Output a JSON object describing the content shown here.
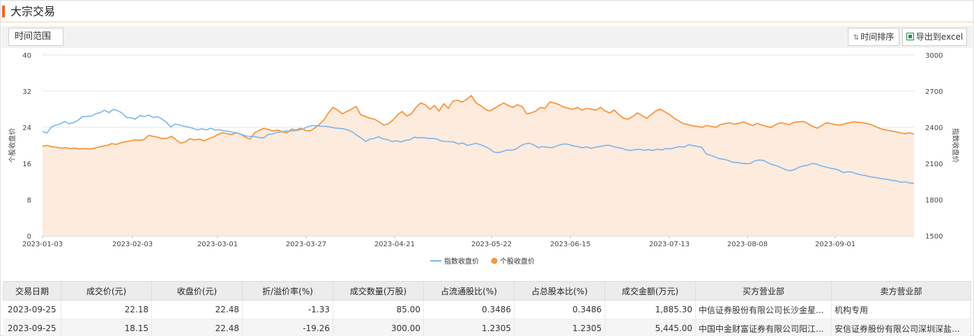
{
  "page": {
    "title": "大宗交易"
  },
  "toolbar": {
    "range_label": "时间范围",
    "sort_label": "时间排序",
    "sort_icon": "sort-icon",
    "export_label": "导出到excel",
    "export_icon": "excel-icon"
  },
  "chart_data": {
    "type": "line",
    "left_axis": {
      "label": "个股收盘价",
      "ticks": [
        "0",
        "8",
        "16",
        "24",
        "32",
        "40"
      ],
      "ylim": [
        0,
        40
      ]
    },
    "right_axis": {
      "label": "指数收盘价",
      "ticks": [
        "1500",
        "1800",
        "2100",
        "2400",
        "2700",
        "3000"
      ],
      "ylim": [
        1500,
        3000
      ]
    },
    "x_ticks": [
      "2023-01-03",
      "2023-02-03",
      "2023-03-01",
      "2023-03-27",
      "2023-04-21",
      "2023-05-22",
      "2023-06-15",
      "2023-07-13",
      "2023-08-08",
      "2023-09-01"
    ],
    "grid": true,
    "legend_position": "bottom",
    "colors": {
      "index": "#7cb5ec",
      "stock": "#f7963c",
      "stock_fill": "#fdebde"
    },
    "series": [
      {
        "name": "指数收盘价",
        "axis": "right",
        "values": [
          2365,
          2352,
          2402,
          2418,
          2428,
          2448,
          2430,
          2438,
          2458,
          2488,
          2490,
          2492,
          2512,
          2522,
          2542,
          2522,
          2548,
          2538,
          2518,
          2482,
          2478,
          2468,
          2498,
          2488,
          2502,
          2482,
          2488,
          2468,
          2442,
          2402,
          2428,
          2418,
          2408,
          2402,
          2392,
          2378,
          2388,
          2378,
          2392,
          2378,
          2380,
          2370,
          2368,
          2358,
          2352,
          2340,
          2328,
          2325,
          2322,
          2315,
          2312,
          2340,
          2345,
          2358,
          2362,
          2370,
          2368,
          2372,
          2378,
          2388,
          2405,
          2415,
          2412,
          2408,
          2408,
          2402,
          2395,
          2392,
          2388,
          2378,
          2362,
          2335,
          2312,
          2282,
          2302,
          2308,
          2322,
          2302,
          2298,
          2282,
          2288,
          2278,
          2292,
          2295,
          2318,
          2312,
          2315,
          2308,
          2308,
          2305,
          2288,
          2282,
          2282,
          2278,
          2262,
          2270,
          2250,
          2258,
          2268,
          2255,
          2242,
          2222,
          2195,
          2190,
          2200,
          2212,
          2210,
          2218,
          2245,
          2262,
          2268,
          2255,
          2232,
          2240,
          2235,
          2230,
          2242,
          2255,
          2262,
          2258,
          2245,
          2240,
          2230,
          2238,
          2225,
          2235,
          2240,
          2248,
          2252,
          2240,
          2232,
          2225,
          2212,
          2208,
          2215,
          2218,
          2210,
          2215,
          2208,
          2218,
          2212,
          2225,
          2220,
          2232,
          2240,
          2235,
          2255,
          2248,
          2242,
          2235,
          2180,
          2168,
          2155,
          2140,
          2135,
          2125,
          2110,
          2108,
          2102,
          2098,
          2100,
          2122,
          2128,
          2125,
          2105,
          2090,
          2080,
          2065,
          2048,
          2040,
          2050,
          2070,
          2080,
          2085,
          2100,
          2095,
          2080,
          2072,
          2062,
          2055,
          2045,
          2025,
          2032,
          2028,
          2015,
          2005,
          2000,
          1990,
          1985,
          1978,
          1972,
          1968,
          1960,
          1955,
          1945,
          1948,
          1938,
          1935
        ]
      },
      {
        "name": "个股收盘价",
        "axis": "left",
        "values": [
          19.8,
          20.0,
          19.7,
          19.6,
          19.4,
          19.5,
          19.3,
          19.4,
          19.2,
          19.3,
          19.2,
          19.3,
          19.6,
          19.8,
          20.0,
          20.4,
          20.2,
          20.6,
          20.8,
          21.0,
          21.2,
          21.1,
          21.3,
          22.2,
          22.0,
          21.8,
          21.5,
          21.6,
          22.0,
          21.2,
          20.5,
          20.8,
          21.5,
          21.2,
          21.4,
          21.0,
          21.5,
          21.8,
          22.4,
          22.8,
          22.6,
          22.4,
          22.8,
          22.5,
          21.8,
          21.4,
          22.8,
          23.3,
          23.8,
          23.5,
          23.2,
          23.4,
          23.0,
          22.8,
          23.6,
          23.4,
          23.8,
          23.3,
          23.2,
          23.8,
          24.6,
          25.6,
          27.2,
          28.4,
          27.8,
          27.0,
          27.5,
          28.0,
          28.6,
          26.8,
          26.4,
          26.0,
          25.8,
          25.2,
          24.5,
          24.8,
          25.6,
          26.8,
          27.5,
          26.5,
          27.0,
          28.4,
          29.4,
          29.0,
          28.0,
          28.8,
          27.6,
          29.2,
          28.2,
          29.8,
          30.0,
          29.6,
          30.2,
          31.0,
          29.4,
          28.8,
          28.0,
          27.6,
          28.2,
          28.8,
          29.4,
          28.8,
          28.4,
          29.0,
          28.6,
          27.0,
          27.2,
          27.6,
          28.4,
          28.2,
          29.6,
          29.4,
          29.0,
          28.5,
          28.2,
          28.0,
          28.4,
          27.8,
          28.2,
          28.0,
          27.8,
          28.4,
          27.6,
          27.2,
          27.8,
          26.8,
          26.0,
          25.8,
          26.4,
          27.2,
          26.6,
          26.0,
          26.8,
          27.6,
          28.0,
          27.4,
          26.8,
          26.0,
          25.4,
          24.8,
          24.6,
          24.3,
          24.2,
          24.0,
          24.4,
          24.2,
          24.0,
          24.6,
          24.8,
          25.0,
          24.7,
          24.9,
          25.2,
          24.8,
          24.4,
          24.9,
          24.5,
          24.2,
          24.0,
          24.6,
          25.0,
          24.8,
          24.6,
          25.1,
          25.2,
          25.3,
          24.8,
          24.2,
          23.8,
          24.4,
          25.0,
          24.8,
          24.6,
          24.5,
          24.8,
          25.0,
          25.2,
          25.1,
          25.0,
          24.8,
          24.5,
          24.0,
          23.6,
          23.4,
          23.2,
          23.0,
          22.8,
          22.6,
          22.8,
          22.5
        ]
      }
    ]
  },
  "table": {
    "headers": [
      "交易日期",
      "成交价(元)",
      "收盘价(元)",
      "折/溢价率(%)",
      "成交数量(万股)",
      "占流通股比(%)",
      "占总股本比(%)",
      "成交金额(万元)",
      "买方营业部",
      "卖方营业部"
    ],
    "rows": [
      {
        "date": "2023-09-25",
        "deal_price": "22.18",
        "close": "22.48",
        "premium": "-1.33",
        "volume": "85.00",
        "float_ratio": "0.3486",
        "total_ratio": "0.3486",
        "amount": "1,885.30",
        "buyer": "中信证券股份有限公司长沙金星...",
        "seller": "机构专用"
      },
      {
        "date": "2023-09-25",
        "deal_price": "18.15",
        "close": "22.48",
        "premium": "-19.26",
        "volume": "300.00",
        "float_ratio": "1.2305",
        "total_ratio": "1.2305",
        "amount": "5,445.00",
        "buyer": "中国中金财富证券有限公司阳江...",
        "seller": "安信证券股份有限公司深圳深盐..."
      }
    ]
  }
}
